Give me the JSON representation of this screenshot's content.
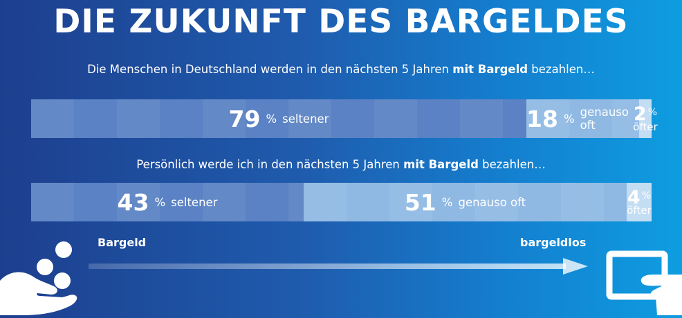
{
  "title": "DIE ZUKUNFT DES BARGELDES",
  "colors": {
    "background_left": "#1d3f8e",
    "background_right": "#0e9de0",
    "seltener": "#5a82c4",
    "genauso_oft": "#8fb9e3",
    "oefter": "#c3ddf3"
  },
  "chart_data": [
    {
      "type": "bar",
      "stacked": true,
      "orientation": "horizontal",
      "title": "Die Menschen in Deutschland werden in den nächsten 5 Jahren mit Bargeld bezahlen…",
      "title_parts": {
        "before": "Die Menschen in Deutschland werden in den nächsten 5 Jahren ",
        "bold": "mit Bargeld",
        "after": " bezahlen…"
      },
      "unit": "%",
      "series": [
        {
          "name": "seltener",
          "value": 79
        },
        {
          "name": "genauso oft",
          "value": 18
        },
        {
          "name": "öfter",
          "value": 2
        }
      ]
    },
    {
      "type": "bar",
      "stacked": true,
      "orientation": "horizontal",
      "title": "Persönlich werde ich in den nächsten 5 Jahren mit Bargeld bezahlen…",
      "title_parts": {
        "before": "Persönlich werde ich in den nächsten 5 Jahren ",
        "bold": "mit Bargeld",
        "after": " bezahlen…"
      },
      "unit": "%",
      "series": [
        {
          "name": "seltener",
          "value": 43
        },
        {
          "name": "genauso oft",
          "value": 51
        },
        {
          "name": "öfter",
          "value": 4
        }
      ]
    }
  ],
  "scale": {
    "left_label": "Bargeld",
    "right_label": "bargeldlos"
  },
  "icons": {
    "left": "hand-with-coins-icon",
    "right": "hand-with-card-icon"
  }
}
